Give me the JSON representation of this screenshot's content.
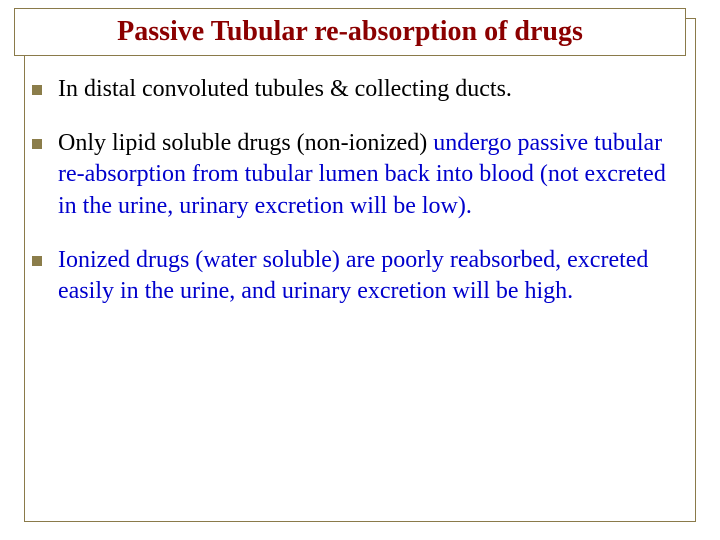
{
  "slide": {
    "title": "Passive Tubular re-absorption of drugs",
    "title_color": "#8b0000",
    "title_fontsize": 28,
    "frame_color": "#8a7a4a",
    "bullet_color": "#8b7d4a",
    "body_fontsize": 24,
    "body_color": "#000000",
    "highlight_color": "#0000cc",
    "background": "#ffffff",
    "bullets": [
      {
        "segments": [
          {
            "text": "In distal convoluted tubules & collecting ducts.",
            "highlight": false
          }
        ]
      },
      {
        "segments": [
          {
            "text": "Only lipid soluble drugs (non-ionized) ",
            "highlight": false
          },
          {
            "text": "undergo passive tubular re-absorption from tubular lumen back into blood (not excreted in the urine, urinary excretion will be low).",
            "highlight": true
          }
        ]
      },
      {
        "segments": [
          {
            "text": "Ionized drugs (water soluble) are poorly reabsorbed, excreted easily in the urine, and urinary excretion will be high.",
            "highlight": true
          }
        ]
      }
    ]
  }
}
